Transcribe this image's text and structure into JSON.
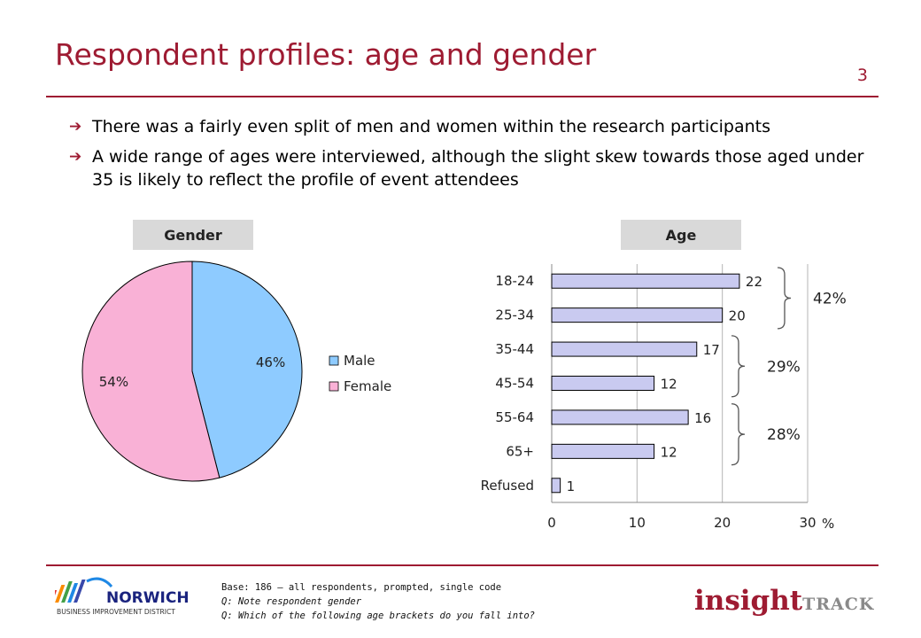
{
  "header": {
    "title": "Respondent profiles: age and gender",
    "page_number": "3"
  },
  "bullets": [
    "There was a fairly even split of men and women within the research participants",
    "A wide range of ages were interviewed, although the slight skew towards those aged under 35 is likely to reflect the profile of event attendees"
  ],
  "colors": {
    "accent": "#9e1b32",
    "male": "#8ecbff",
    "female": "#f9b1d6",
    "bar": "#c9caf0",
    "label_bg": "#d9d9d9"
  },
  "icons": {
    "bullet": "arrow-right-icon"
  },
  "chart_data": [
    {
      "type": "pie",
      "title": "Gender",
      "categories": [
        "Male",
        "Female"
      ],
      "values": [
        46,
        54
      ],
      "labels": [
        "46%",
        "54%"
      ],
      "legend_placement": "right"
    },
    {
      "type": "bar",
      "orientation": "horizontal",
      "title": "Age",
      "categories": [
        "18-24",
        "25-34",
        "35-44",
        "45-54",
        "55-64",
        "65+",
        "Refused"
      ],
      "values": [
        22,
        20,
        17,
        12,
        16,
        12,
        1
      ],
      "xlim": [
        0,
        30
      ],
      "xticks": [
        "0",
        "10",
        "20",
        "30"
      ],
      "unit": "%",
      "grid": true,
      "groups": [
        {
          "label": "42%",
          "categories": [
            "18-24",
            "25-34"
          ]
        },
        {
          "label": "29%",
          "categories": [
            "35-44",
            "45-54"
          ]
        },
        {
          "label": "28%",
          "categories": [
            "55-64",
            "65+"
          ]
        }
      ]
    }
  ],
  "footer": {
    "base": "Base: 186 – all respondents, prompted, single code",
    "q1": "Q: Note respondent gender",
    "q2": "Q: Which of the following age brackets do you fall into?",
    "logo_left_main": "NORWICH",
    "logo_left_sub": "BUSINESS IMPROVEMENT DISTRICT",
    "logo_right_a": "insight",
    "logo_right_b": "TRACK"
  }
}
